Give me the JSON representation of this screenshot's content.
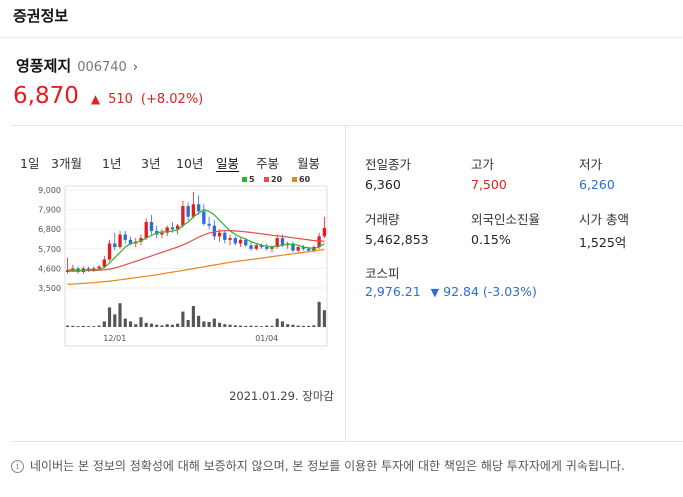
{
  "header": {
    "title": "증권정보"
  },
  "stock": {
    "name": "영풍제지",
    "code": "006740",
    "price": "6,870",
    "change_amount": "510",
    "change_percent": "(+8.02%)"
  },
  "chart": {
    "period_tabs": [
      "1일",
      "3개월",
      "1년",
      "3년",
      "10년",
      "일봉",
      "주봉",
      "월봉"
    ],
    "active_tab": "일봉",
    "legend": [
      {
        "label": "5",
        "color": "#32b032"
      },
      {
        "label": "20",
        "color": "#e74c4c"
      },
      {
        "label": "60",
        "color": "#e08a1e"
      }
    ],
    "timestamp": "2021.01.29. 장마감"
  },
  "stats": {
    "prev_close": {
      "label": "전일종가",
      "value": "6,360"
    },
    "high": {
      "label": "고가",
      "value": "7,500"
    },
    "low": {
      "label": "저가",
      "value": "6,260"
    },
    "volume": {
      "label": "거래량",
      "value": "5,462,853"
    },
    "foreign_ratio": {
      "label": "외국인소진율",
      "value": "0.15%"
    },
    "market_cap": {
      "label": "시가 총액",
      "value": "1,525억"
    }
  },
  "kospi": {
    "label": "코스피",
    "value": "2,976.21",
    "change": "92.84 (-3.03%)"
  },
  "disclaimer": "네이버는 본 정보의 정확성에 대해 보증하지 않으며, 본 정보를 이용한 투자에 대한 책임은 해당 투자자에게 귀속됩니다.",
  "chart_data": {
    "type": "candlestick",
    "y_ticks": [
      "9,000",
      "7,900",
      "6,800",
      "5,700",
      "4,600",
      "3,500"
    ],
    "ylim": [
      3500,
      9000
    ],
    "x_tick_labels": [
      "12/01",
      "01/04"
    ],
    "series": [
      {
        "name": "5",
        "color": "#32b032"
      },
      {
        "name": "20",
        "color": "#e74c4c"
      },
      {
        "name": "60",
        "color": "#e08a1e"
      }
    ],
    "candles": [
      [
        4400,
        5200,
        4300,
        4500
      ],
      [
        4500,
        4800,
        4400,
        4600
      ],
      [
        4600,
        4700,
        4300,
        4400
      ],
      [
        4400,
        4700,
        4300,
        4600
      ],
      [
        4600,
        4700,
        4400,
        4500
      ],
      [
        4500,
        4700,
        4400,
        4600
      ],
      [
        4600,
        4800,
        4500,
        4700
      ],
      [
        4700,
        5300,
        4600,
        5100
      ],
      [
        5100,
        6200,
        5000,
        6000
      ],
      [
        6000,
        6600,
        5600,
        5800
      ],
      [
        5800,
        6700,
        5700,
        6500
      ],
      [
        6500,
        6700,
        6000,
        6200
      ],
      [
        6200,
        6400,
        5900,
        6000
      ],
      [
        6000,
        6300,
        5800,
        6100
      ],
      [
        6100,
        6500,
        5900,
        6300
      ],
      [
        6300,
        7400,
        6200,
        7200
      ],
      [
        7200,
        7600,
        6500,
        6700
      ],
      [
        6700,
        7000,
        6300,
        6500
      ],
      [
        6500,
        6800,
        6300,
        6600
      ],
      [
        6600,
        7000,
        6400,
        6900
      ],
      [
        6900,
        7200,
        6600,
        6800
      ],
      [
        6800,
        7100,
        6500,
        7000
      ],
      [
        7000,
        8400,
        6900,
        8100
      ],
      [
        8100,
        8300,
        7300,
        7500
      ],
      [
        7500,
        8900,
        7400,
        8200
      ],
      [
        8200,
        8700,
        7600,
        7800
      ],
      [
        7800,
        8200,
        7000,
        7100
      ],
      [
        7100,
        7500,
        6800,
        7000
      ],
      [
        7000,
        7300,
        6200,
        6400
      ],
      [
        6400,
        6800,
        6100,
        6600
      ],
      [
        6600,
        6700,
        6000,
        6200
      ],
      [
        6200,
        6500,
        5900,
        6300
      ],
      [
        6300,
        6400,
        5900,
        6000
      ],
      [
        6000,
        6300,
        5800,
        6200
      ],
      [
        6200,
        6300,
        5800,
        5900
      ],
      [
        5900,
        6100,
        5600,
        5700
      ],
      [
        5700,
        6000,
        5600,
        5900
      ],
      [
        5900,
        6000,
        5700,
        5800
      ],
      [
        5800,
        6000,
        5600,
        5700
      ],
      [
        5700,
        5900,
        5500,
        5800
      ],
      [
        5800,
        6500,
        5700,
        6300
      ],
      [
        6300,
        6500,
        5800,
        5900
      ],
      [
        5900,
        6100,
        5700,
        6000
      ],
      [
        6000,
        6100,
        5500,
        5600
      ],
      [
        5600,
        5900,
        5500,
        5800
      ],
      [
        5800,
        5900,
        5600,
        5700
      ],
      [
        5700,
        5800,
        5500,
        5600
      ],
      [
        5600,
        5900,
        5500,
        5800
      ],
      [
        5800,
        6600,
        5700,
        6400
      ],
      [
        6400,
        7500,
        6300,
        6870
      ]
    ],
    "ma5": [
      4500,
      4520,
      4480,
      4500,
      4520,
      4520,
      4540,
      4650,
      4900,
      5200,
      5500,
      5800,
      6000,
      6050,
      6150,
      6300,
      6450,
      6600,
      6650,
      6650,
      6700,
      6750,
      7000,
      7200,
      7500,
      7700,
      7900,
      7800,
      7600,
      7300,
      7000,
      6700,
      6500,
      6350,
      6250,
      6100,
      6000,
      5900,
      5850,
      5800,
      5850,
      5900,
      5950,
      5950,
      5900,
      5800,
      5750,
      5720,
      5800,
      6000
    ],
    "ma20": [
      4450,
      4450,
      4460,
      4470,
      4480,
      4490,
      4500,
      4520,
      4560,
      4620,
      4700,
      4800,
      4900,
      5000,
      5100,
      5200,
      5300,
      5400,
      5500,
      5600,
      5700,
      5800,
      5920,
      6050,
      6200,
      6350,
      6480,
      6580,
      6650,
      6700,
      6720,
      6720,
      6700,
      6680,
      6650,
      6620,
      6580,
      6540,
      6500,
      6460,
      6430,
      6400,
      6360,
      6320,
      6280,
      6240,
      6200,
      6160,
      6140,
      6130
    ],
    "ma60": [
      3700,
      3720,
      3740,
      3760,
      3780,
      3800,
      3830,
      3860,
      3890,
      3920,
      3960,
      4000,
      4040,
      4080,
      4120,
      4160,
      4200,
      4240,
      4290,
      4340,
      4390,
      4440,
      4490,
      4540,
      4590,
      4640,
      4690,
      4740,
      4790,
      4840,
      4890,
      4940,
      4980,
      5020,
      5060,
      5100,
      5140,
      5180,
      5220,
      5260,
      5300,
      5340,
      5380,
      5420,
      5460,
      5500,
      5540,
      5580,
      5620,
      5660
    ],
    "volume": [
      0.05,
      0.04,
      0.03,
      0.04,
      0.03,
      0.03,
      0.05,
      0.2,
      0.7,
      0.45,
      0.85,
      0.3,
      0.2,
      0.1,
      0.35,
      0.15,
      0.12,
      0.08,
      0.06,
      0.1,
      0.08,
      0.12,
      0.55,
      0.25,
      0.75,
      0.4,
      0.2,
      0.18,
      0.3,
      0.15,
      0.1,
      0.08,
      0.06,
      0.05,
      0.04,
      0.05,
      0.04,
      0.03,
      0.05,
      0.04,
      0.3,
      0.2,
      0.1,
      0.08,
      0.05,
      0.04,
      0.04,
      0.06,
      0.9,
      0.6
    ]
  }
}
